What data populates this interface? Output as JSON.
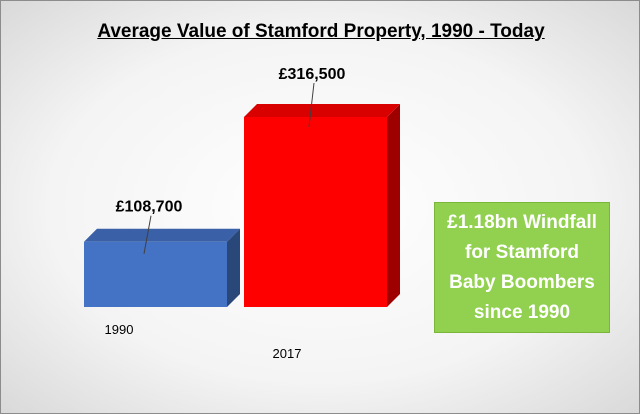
{
  "chart_data": {
    "type": "bar",
    "title": "Average Value of Stamford Property, 1990 - Today",
    "categories": [
      "1990",
      "2017"
    ],
    "values": [
      108700,
      316500
    ],
    "data_labels": [
      "£108,700",
      "£316,500"
    ],
    "colors": [
      "#4472c4",
      "#ff0000"
    ],
    "xlabel": "",
    "ylabel": "",
    "ylim": [
      0,
      316500
    ],
    "grid": false,
    "legend": "none"
  },
  "callout": {
    "text": "£1.18bn Windfall\nfor Stamford\nBaby Boombers\nsince 1990",
    "color": "#92d050"
  }
}
